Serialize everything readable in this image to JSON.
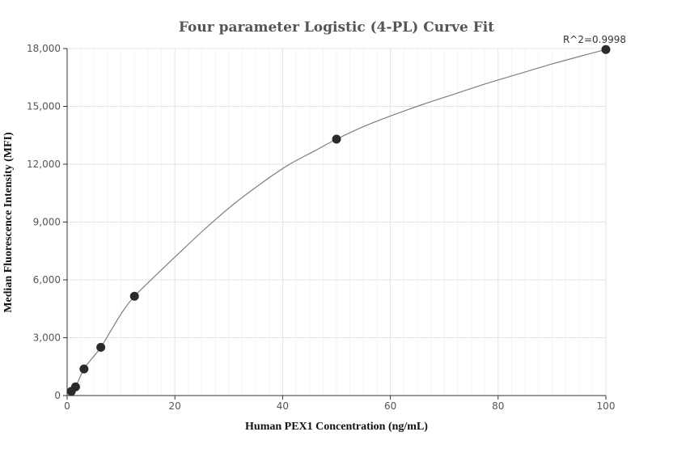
{
  "chart_data": {
    "type": "scatter",
    "title": "Four parameter Logistic (4-PL) Curve Fit",
    "xlabel": "Human PEX1 Concentration (ng/mL)",
    "ylabel": "Median Fluorescence Intensity (MFI)",
    "xlim": [
      0,
      100
    ],
    "ylim": [
      0,
      18000
    ],
    "x_ticks": [
      0,
      20,
      40,
      60,
      80,
      100
    ],
    "x_tick_labels": [
      "0",
      "20",
      "40",
      "60",
      "80",
      "100"
    ],
    "y_ticks": [
      0,
      3000,
      6000,
      9000,
      12000,
      15000,
      18000
    ],
    "y_tick_labels": [
      "0",
      "3,000",
      "6,000",
      "9,000",
      "12,000",
      "15,000",
      "18,000"
    ],
    "grid": true,
    "annotation": "R^2=0.9998",
    "series": [
      {
        "x": [
          0.78,
          1.56,
          3.13,
          6.25,
          12.5,
          50,
          100
        ],
        "y": [
          220,
          450,
          1380,
          2500,
          5150,
          13300,
          17950
        ]
      }
    ],
    "fit_curve": {
      "x": [
        0.78,
        1.56,
        3.13,
        4.7,
        6.25,
        8.3,
        10.4,
        12.5,
        16.5,
        21,
        26,
        31,
        36,
        41,
        46,
        50,
        55,
        60,
        66,
        72,
        78,
        84,
        90,
        95,
        100
      ],
      "y": [
        220,
        450,
        1380,
        1950,
        2500,
        3450,
        4400,
        5150,
        6250,
        7450,
        8750,
        9950,
        11000,
        11950,
        12700,
        13300,
        13950,
        14500,
        15100,
        15650,
        16200,
        16700,
        17200,
        17580,
        17950
      ]
    }
  }
}
